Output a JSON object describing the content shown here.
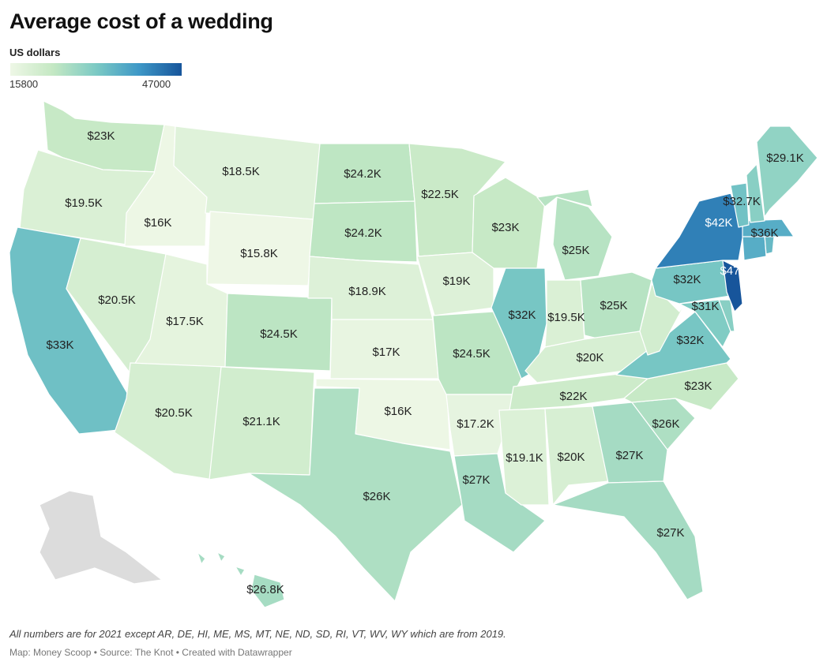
{
  "title": "Average cost of a wedding",
  "legend": {
    "title": "US dollars",
    "min": "15800",
    "max": "47000",
    "min_value": 15800,
    "max_value": 47000,
    "colors": [
      "#eef7e6",
      "#c4e8c3",
      "#7ccac4",
      "#3e98c7",
      "#17559b"
    ]
  },
  "no_data_color": "#dcdcdc",
  "states": [
    {
      "id": "WA",
      "value": 23000,
      "label": "$23K"
    },
    {
      "id": "OR",
      "value": 19500,
      "label": "$19.5K"
    },
    {
      "id": "CA",
      "value": 33000,
      "label": "$33K"
    },
    {
      "id": "ID",
      "value": 16000,
      "label": "$16K"
    },
    {
      "id": "NV",
      "value": 20500,
      "label": "$20.5K"
    },
    {
      "id": "MT",
      "value": 18500,
      "label": "$18.5K"
    },
    {
      "id": "WY",
      "value": 15800,
      "label": "$15.8K"
    },
    {
      "id": "UT",
      "value": 17500,
      "label": "$17.5K"
    },
    {
      "id": "AZ",
      "value": 20500,
      "label": "$20.5K"
    },
    {
      "id": "CO",
      "value": 24500,
      "label": "$24.5K"
    },
    {
      "id": "NM",
      "value": 21100,
      "label": "$21.1K"
    },
    {
      "id": "ND",
      "value": 24200,
      "label": "$24.2K"
    },
    {
      "id": "SD",
      "value": 24200,
      "label": "$24.2K"
    },
    {
      "id": "NE",
      "value": 18900,
      "label": "$18.9K"
    },
    {
      "id": "KS",
      "value": 17000,
      "label": "$17K"
    },
    {
      "id": "OK",
      "value": 16000,
      "label": "$16K"
    },
    {
      "id": "TX",
      "value": 26000,
      "label": "$26K"
    },
    {
      "id": "MN",
      "value": 22500,
      "label": "$22.5K"
    },
    {
      "id": "IA",
      "value": 19000,
      "label": "$19K"
    },
    {
      "id": "MO",
      "value": 24500,
      "label": "$24.5K"
    },
    {
      "id": "AR",
      "value": 17200,
      "label": "$17.2K"
    },
    {
      "id": "LA",
      "value": 27000,
      "label": "$27K"
    },
    {
      "id": "WI",
      "value": 23000,
      "label": "$23K"
    },
    {
      "id": "IL",
      "value": 32000,
      "label": "$32K"
    },
    {
      "id": "MI",
      "value": 25000,
      "label": "$25K"
    },
    {
      "id": "IN",
      "value": 19500,
      "label": "$19.5K"
    },
    {
      "id": "OH",
      "value": 25000,
      "label": "$25K"
    },
    {
      "id": "KY",
      "value": 20000,
      "label": "$20K"
    },
    {
      "id": "TN",
      "value": 22000,
      "label": "$22K"
    },
    {
      "id": "MS",
      "value": 19100,
      "label": "$19.1K"
    },
    {
      "id": "AL",
      "value": 20000,
      "label": "$20K"
    },
    {
      "id": "GA",
      "value": 27000,
      "label": "$27K"
    },
    {
      "id": "FL",
      "value": 27000,
      "label": "$27K"
    },
    {
      "id": "SC",
      "value": 26000,
      "label": "$26K"
    },
    {
      "id": "NC",
      "value": 23000,
      "label": "$23K"
    },
    {
      "id": "VA",
      "value": 32000,
      "label": "$32K"
    },
    {
      "id": "WV",
      "value": 21000,
      "label": ""
    },
    {
      "id": "MD",
      "value": 31000,
      "label": "$31K"
    },
    {
      "id": "DE",
      "value": 30000,
      "label": ""
    },
    {
      "id": "PA",
      "value": 32000,
      "label": "$32K"
    },
    {
      "id": "NJ",
      "value": 47000,
      "label": "$47K"
    },
    {
      "id": "NY",
      "value": 42000,
      "label": "$42K"
    },
    {
      "id": "CT",
      "value": 36000,
      "label": ""
    },
    {
      "id": "RI",
      "value": 34000,
      "label": ""
    },
    {
      "id": "MA",
      "value": 36000,
      "label": "$36K"
    },
    {
      "id": "VT",
      "value": 32700,
      "label": "$32.7K"
    },
    {
      "id": "NH",
      "value": 30000,
      "label": ""
    },
    {
      "id": "ME",
      "value": 29100,
      "label": "$29.1K"
    },
    {
      "id": "HI",
      "value": 26800,
      "label": "$26.8K"
    },
    {
      "id": "AK",
      "value": null,
      "label": ""
    }
  ],
  "footnote": "All numbers are for 2021 except AR, DE, HI, ME, MS, MT, NE, ND, SD, RI, VT, WV, WY which are from 2019.",
  "source": "Map: Money Scoop • Source: The Knot • Created with Datawrapper"
}
